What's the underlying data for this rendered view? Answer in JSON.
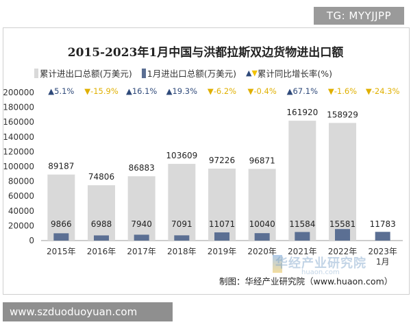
{
  "badge": "TG: MYYJJPP",
  "footer_url": "www.szduoduoyuan.com",
  "credit": "制图：华经产业研究院（www.huaon.com）",
  "watermark": {
    "name": "华经产业研究院",
    "site": "huaon.com"
  },
  "colors": {
    "cumulative": "#d9d9d9",
    "january": "#5b6f93",
    "up": "#2f4a7a",
    "down": "#f2c200"
  },
  "chart_data": {
    "type": "bar",
    "title": "2015-2023年1月中国与洪都拉斯双边货物进出口额",
    "legend": {
      "position": "top",
      "entries": [
        "累计进出口总额(万美元)",
        "1月进出口总额(万美元)",
        "累计同比增长率(%)"
      ]
    },
    "categories": [
      "2015年",
      "2016年",
      "2017年",
      "2018年",
      "2019年",
      "2020年",
      "2021年",
      "2022年",
      "2023年1月"
    ],
    "series": [
      {
        "name": "累计进出口总额(万美元)",
        "values": [
          89187,
          74806,
          86883,
          103609,
          97226,
          96871,
          161920,
          158929,
          null
        ]
      },
      {
        "name": "1月进出口总额(万美元)",
        "values": [
          9866,
          6988,
          7940,
          7091,
          11071,
          10040,
          11584,
          15581,
          11783
        ]
      }
    ],
    "growth_rate": {
      "name": "累计同比增长率(%)",
      "values": [
        5.1,
        -15.9,
        16.1,
        19.3,
        -6.2,
        -0.4,
        67.1,
        -1.6,
        -24.3
      ],
      "labels": [
        "5.1%",
        "-15.9%",
        "16.1%",
        "19.3%",
        "-6.2%",
        "-0.4%",
        "67.1%",
        "-1.6%",
        "-24.3%"
      ]
    },
    "ylim": [
      0,
      200000
    ],
    "yticks": [
      0,
      20000,
      40000,
      60000,
      80000,
      100000,
      120000,
      140000,
      160000,
      180000,
      200000
    ],
    "grid": false
  }
}
